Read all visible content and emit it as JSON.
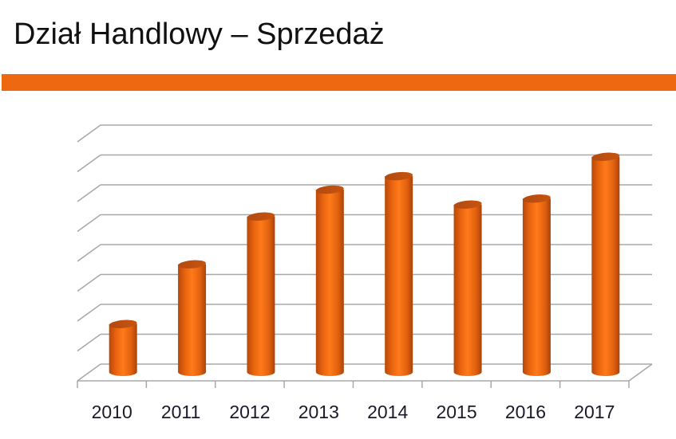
{
  "header": {
    "title": "Dział Handlowy – Sprzedaż",
    "accent_color": "#EE6812"
  },
  "chart_data": {
    "type": "bar",
    "style": "3d-cylinder",
    "title": "Dział Handlowy – Sprzedaż",
    "xlabel": "",
    "ylabel": "",
    "categories": [
      "2010",
      "2011",
      "2012",
      "2013",
      "2014",
      "2015",
      "2016",
      "2017"
    ],
    "values": [
      1.5,
      3.5,
      5.1,
      6.0,
      6.45,
      5.5,
      5.7,
      7.1
    ],
    "ylim": [
      0,
      8
    ],
    "y_tick_labels_visible": false,
    "gridlines": 8,
    "grid": true,
    "legend": "none",
    "bar_color": "#EE6812"
  }
}
